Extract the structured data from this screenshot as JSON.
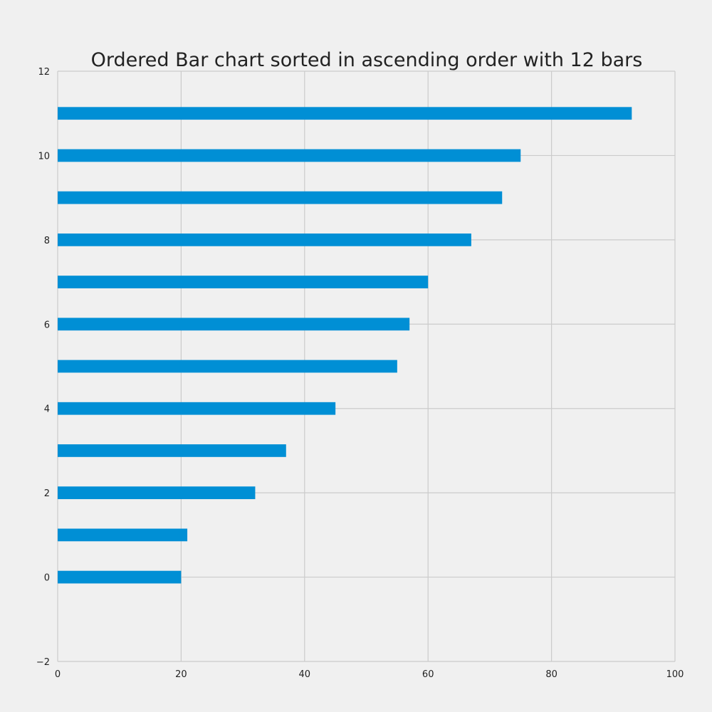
{
  "chart_data": {
    "type": "bar",
    "orientation": "horizontal",
    "title": "Ordered Bar chart sorted in ascending order with 12 bars",
    "xlabel": "",
    "ylabel": "",
    "categories": [
      0,
      1,
      2,
      3,
      4,
      5,
      6,
      7,
      8,
      9,
      10,
      11
    ],
    "values": [
      20,
      21,
      32,
      37,
      45,
      55,
      57,
      60,
      67,
      72,
      75,
      93
    ],
    "bar_height": 0.3,
    "xlim": [
      0,
      100
    ],
    "ylim": [
      -2,
      12
    ],
    "x_ticks": [
      0,
      20,
      40,
      60,
      80,
      100
    ],
    "x_tick_labels": [
      "0",
      "20",
      "40",
      "60",
      "80",
      "100"
    ],
    "y_ticks": [
      -2,
      0,
      2,
      4,
      6,
      8,
      10,
      12
    ],
    "y_tick_labels": [
      "−2",
      "0",
      "2",
      "4",
      "6",
      "8",
      "10",
      "12"
    ],
    "grid": true,
    "bar_color": "#008fd5",
    "background_color": "#f0f0f0",
    "grid_color": "#cbcbcb"
  }
}
